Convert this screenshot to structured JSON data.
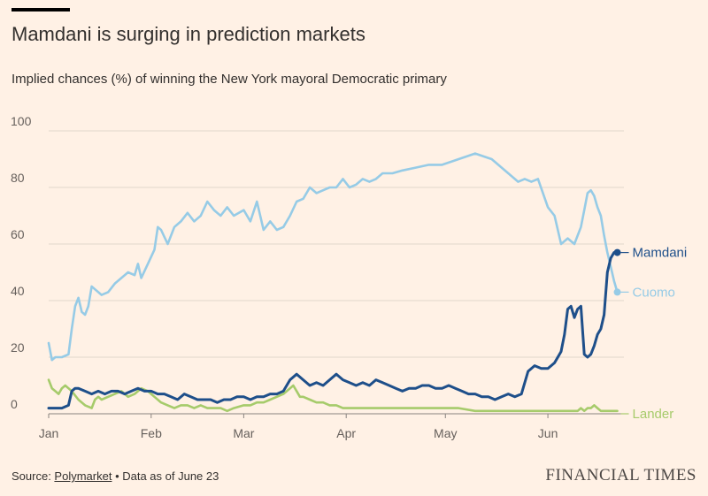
{
  "header": {
    "title": "Mamdani is surging in prediction markets",
    "subtitle": "Implied chances (%) of winning the New York mayoral Democratic primary"
  },
  "footer": {
    "source_prefix": "Source: ",
    "source_link": "Polymarket",
    "source_suffix": " • Data as of June 23",
    "brand": "FINANCIAL TIMES"
  },
  "colors": {
    "background": "#fff1e5",
    "mamdani": "#1e4f8a",
    "cuomo": "#96cbe6",
    "lander": "#a6cb6b",
    "grid": "#e2d7cc"
  },
  "chart_data": {
    "type": "line",
    "x_unit": "day of year 2025",
    "xlim": [
      1,
      175
    ],
    "ylim": [
      0,
      100
    ],
    "yticks": [
      0,
      20,
      40,
      60,
      80,
      100
    ],
    "xticks": [
      {
        "label": "Jan",
        "x": 1
      },
      {
        "label": "Feb",
        "x": 32
      },
      {
        "label": "Mar",
        "x": 60
      },
      {
        "label": "Apr",
        "x": 91
      },
      {
        "label": "May",
        "x": 121
      },
      {
        "label": "Jun",
        "x": 152
      }
    ],
    "grid": true,
    "series": [
      {
        "name": "Cuomo",
        "color_key": "cuomo",
        "end_marker": true,
        "x": [
          1,
          2,
          3,
          5,
          7,
          8,
          9,
          10,
          11,
          12,
          13,
          14,
          15,
          17,
          19,
          21,
          23,
          25,
          27,
          28,
          29,
          31,
          33,
          34,
          35,
          37,
          39,
          41,
          43,
          45,
          46,
          47,
          49,
          51,
          53,
          55,
          57,
          60,
          62,
          64,
          66,
          68,
          70,
          72,
          74,
          76,
          78,
          80,
          82,
          84,
          86,
          88,
          90,
          92,
          94,
          96,
          98,
          100,
          102,
          105,
          108,
          112,
          116,
          120,
          125,
          130,
          135,
          140,
          143,
          145,
          147,
          149,
          152,
          154,
          156,
          158,
          160,
          162,
          163,
          164,
          165,
          166,
          167,
          168,
          169,
          170,
          171,
          172,
          173
        ],
        "values": [
          25,
          19,
          20,
          20,
          21,
          30,
          38,
          41,
          36,
          35,
          38,
          45,
          44,
          42,
          43,
          46,
          48,
          50,
          49,
          53,
          48,
          53,
          58,
          66,
          65,
          60,
          66,
          68,
          71,
          68,
          69,
          70,
          75,
          72,
          70,
          73,
          70,
          72,
          68,
          75,
          65,
          68,
          65,
          66,
          70,
          75,
          76,
          80,
          78,
          79,
          80,
          80,
          83,
          80,
          81,
          83,
          82,
          83,
          85,
          85,
          86,
          87,
          88,
          88,
          90,
          92,
          90,
          85,
          82,
          83,
          82,
          83,
          73,
          70,
          60,
          62,
          60,
          66,
          72,
          78,
          79,
          77,
          73,
          70,
          63,
          57,
          52,
          47,
          43
        ]
      },
      {
        "name": "Mamdani",
        "color_key": "mamdani",
        "end_marker": true,
        "x": [
          1,
          3,
          5,
          7,
          8,
          9,
          10,
          12,
          14,
          16,
          18,
          20,
          22,
          24,
          26,
          28,
          30,
          32,
          34,
          36,
          38,
          40,
          42,
          44,
          46,
          48,
          50,
          52,
          54,
          56,
          58,
          60,
          62,
          64,
          66,
          68,
          70,
          72,
          74,
          76,
          78,
          80,
          82,
          84,
          86,
          88,
          90,
          92,
          94,
          96,
          98,
          100,
          102,
          104,
          106,
          108,
          110,
          112,
          114,
          116,
          118,
          120,
          122,
          124,
          126,
          128,
          130,
          132,
          134,
          136,
          138,
          140,
          142,
          144,
          146,
          148,
          150,
          152,
          153,
          154,
          155,
          156,
          157,
          158,
          159,
          160,
          161,
          162,
          163,
          164,
          165,
          166,
          167,
          168,
          169,
          170,
          171,
          172,
          173
        ],
        "values": [
          2,
          2,
          2,
          3,
          8,
          9,
          9,
          8,
          7,
          8,
          7,
          8,
          8,
          7,
          8,
          9,
          8,
          8,
          7,
          7,
          6,
          5,
          7,
          6,
          5,
          5,
          5,
          4,
          5,
          5,
          6,
          6,
          5,
          6,
          6,
          7,
          7,
          8,
          12,
          14,
          12,
          10,
          11,
          10,
          12,
          14,
          12,
          11,
          10,
          11,
          10,
          12,
          11,
          10,
          9,
          8,
          9,
          9,
          10,
          10,
          9,
          9,
          10,
          9,
          8,
          7,
          7,
          6,
          6,
          5,
          6,
          7,
          6,
          7,
          15,
          17,
          16,
          16,
          17,
          18,
          20,
          22,
          28,
          37,
          38,
          34,
          37,
          38,
          21,
          20,
          21,
          24,
          28,
          30,
          35,
          50,
          55,
          57,
          57
        ]
      },
      {
        "name": "Lander",
        "color_key": "lander",
        "end_marker": false,
        "x": [
          1,
          2,
          3,
          4,
          5,
          6,
          7,
          8,
          10,
          12,
          14,
          15,
          16,
          17,
          19,
          21,
          23,
          25,
          27,
          29,
          31,
          33,
          35,
          37,
          39,
          41,
          43,
          45,
          47,
          49,
          51,
          53,
          55,
          57,
          60,
          62,
          64,
          66,
          68,
          70,
          72,
          74,
          75,
          76,
          77,
          78,
          80,
          82,
          84,
          86,
          88,
          90,
          92,
          94,
          96,
          100,
          105,
          110,
          115,
          120,
          125,
          130,
          135,
          140,
          145,
          150,
          152,
          155,
          158,
          160,
          161,
          162,
          163,
          164,
          165,
          166,
          167,
          168,
          170,
          172,
          173
        ],
        "values": [
          12,
          9,
          8,
          7,
          9,
          10,
          9,
          8,
          5,
          3,
          2,
          5,
          6,
          5,
          6,
          7,
          8,
          6,
          7,
          9,
          8,
          6,
          4,
          3,
          2,
          3,
          3,
          2,
          3,
          2,
          2,
          2,
          1,
          2,
          3,
          3,
          4,
          4,
          5,
          6,
          7,
          9,
          10,
          8,
          6,
          6,
          5,
          4,
          4,
          3,
          3,
          2,
          2,
          2,
          2,
          2,
          2,
          2,
          2,
          2,
          2,
          1,
          1,
          1,
          1,
          1,
          1,
          1,
          1,
          1,
          1,
          2,
          1,
          2,
          2,
          3,
          2,
          1,
          1,
          1,
          1
        ]
      }
    ],
    "labels": [
      {
        "text": "Mamdani",
        "series": "Mamdani",
        "at_value": 57
      },
      {
        "text": "Cuomo",
        "series": "Cuomo",
        "at_value": 43
      },
      {
        "text": "Lander",
        "series": "Lander",
        "at_value": 0
      }
    ]
  }
}
